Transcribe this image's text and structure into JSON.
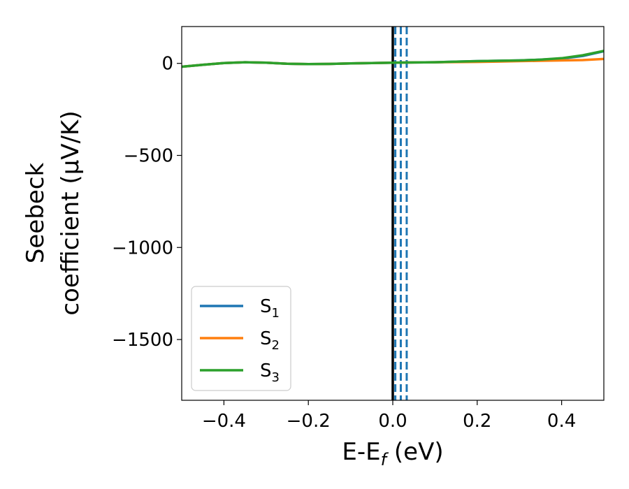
{
  "chart_data": {
    "type": "line",
    "xlabel": "E-E",
    "xlabel_sub": "f",
    "xlabel_unit": " (eV)",
    "ylabel_line1": "Seebeck",
    "ylabel_line2": "coefficient  (μV/K)",
    "xlim": [
      -0.5,
      0.5
    ],
    "ylim": [
      -1830,
      200
    ],
    "x_ticks": [
      -0.4,
      -0.2,
      0.0,
      0.2,
      0.4
    ],
    "x_tick_labels": [
      "−0.4",
      "−0.2",
      "0.0",
      "0.2",
      "0.4"
    ],
    "y_ticks": [
      0,
      -500,
      -1000,
      -1500
    ],
    "y_tick_labels": [
      "0",
      "−500",
      "−1000",
      "−1500"
    ],
    "legend_position": "lower-left",
    "series": [
      {
        "name": "S",
        "sub": "1",
        "color": "#1f77b4",
        "x": [
          -0.5,
          -0.45,
          -0.4,
          -0.35,
          -0.3,
          -0.25,
          -0.2,
          -0.15,
          -0.1,
          -0.05,
          0.0,
          0.05,
          0.1,
          0.15,
          0.2,
          0.25,
          0.3,
          0.35,
          0.4,
          0.45,
          0.5
        ],
        "y": [
          -18,
          -8,
          2,
          6,
          4,
          -2,
          -4,
          -3,
          0,
          2,
          4,
          5,
          6,
          9,
          12,
          14,
          16,
          20,
          26,
          40,
          66
        ]
      },
      {
        "name": "S",
        "sub": "2",
        "color": "#ff7f0e",
        "x": [
          -0.5,
          -0.45,
          -0.4,
          -0.35,
          -0.3,
          -0.25,
          -0.2,
          -0.15,
          -0.1,
          -0.05,
          0.0,
          0.05,
          0.1,
          0.15,
          0.2,
          0.25,
          0.3,
          0.35,
          0.4,
          0.45,
          0.5
        ],
        "y": [
          -18,
          -8,
          2,
          6,
          4,
          -2,
          -4,
          -3,
          0,
          2,
          4,
          5,
          6,
          7,
          8,
          10,
          12,
          14,
          16,
          18,
          24
        ]
      },
      {
        "name": "S",
        "sub": "3",
        "color": "#2ca02c",
        "x": [
          -0.5,
          -0.45,
          -0.4,
          -0.35,
          -0.3,
          -0.25,
          -0.2,
          -0.15,
          -0.1,
          -0.05,
          0.0,
          0.05,
          0.1,
          0.15,
          0.2,
          0.25,
          0.3,
          0.35,
          0.4,
          0.45,
          0.5
        ],
        "y": [
          -18,
          -8,
          2,
          6,
          4,
          -2,
          -4,
          -3,
          0,
          2,
          4,
          5,
          6,
          9,
          12,
          14,
          16,
          20,
          28,
          44,
          68
        ]
      }
    ],
    "vertical_lines": [
      {
        "x": 0.0,
        "color": "#000000",
        "style": "solid"
      },
      {
        "x": 0.006,
        "color": "#1f77b4",
        "style": "dashed"
      },
      {
        "x": 0.019,
        "color": "#1f77b4",
        "style": "dashed"
      },
      {
        "x": 0.033,
        "color": "#1f77b4",
        "style": "dashed"
      }
    ]
  }
}
